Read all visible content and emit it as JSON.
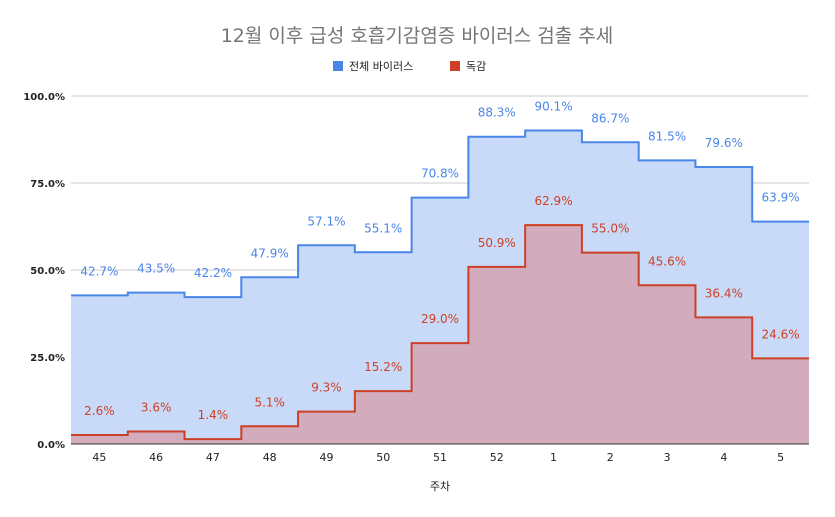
{
  "chart_data": {
    "type": "area",
    "title": "12월 이후 급성 호흡기감염증 바이러스 검출 추세",
    "xlabel": "주차",
    "ylabel": "",
    "categories": [
      "45",
      "46",
      "47",
      "48",
      "49",
      "50",
      "51",
      "52",
      "1",
      "2",
      "3",
      "4",
      "5"
    ],
    "y_ticks": [
      "0.0%",
      "25.0%",
      "50.0%",
      "75.0%",
      "100.0%"
    ],
    "ylim": [
      0,
      100
    ],
    "step": true,
    "grid": true,
    "legend_position": "top",
    "series": [
      {
        "name": "전체 바이러스",
        "color": "#4a86e8",
        "fill": "#c9daf8",
        "values": [
          42.7,
          43.5,
          42.2,
          47.9,
          57.1,
          55.1,
          70.8,
          88.3,
          90.1,
          86.7,
          81.5,
          79.6,
          63.9
        ],
        "labels": [
          "42.7%",
          "43.5%",
          "42.2%",
          "47.9%",
          "57.1%",
          "55.1%",
          "70.8%",
          "88.3%",
          "90.1%",
          "86.7%",
          "81.5%",
          "79.6%",
          "63.9%"
        ]
      },
      {
        "name": "독감",
        "color": "#cc4125",
        "fill": "#d3a9b9",
        "values": [
          2.6,
          3.6,
          1.4,
          5.1,
          9.3,
          15.2,
          29.0,
          50.9,
          62.9,
          55.0,
          45.6,
          36.4,
          24.6
        ],
        "labels": [
          "2.6%",
          "3.6%",
          "1.4%",
          "5.1%",
          "9.3%",
          "15.2%",
          "29.0%",
          "50.9%",
          "62.9%",
          "55.0%",
          "45.6%",
          "36.4%",
          "24.6%"
        ]
      }
    ]
  }
}
